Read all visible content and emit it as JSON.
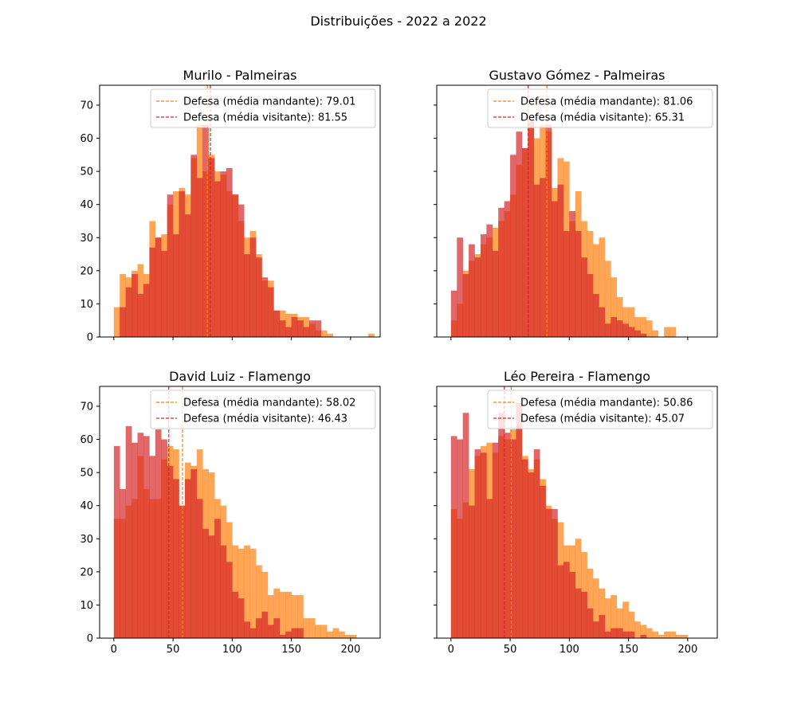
{
  "figure_title": "Distribuições - 2022 a 2022",
  "colors": {
    "home_hist": "#ff7f0e",
    "away_hist": "#d62728",
    "home_line": "#ff7f0e",
    "away_line": "#d62728",
    "overlap": "#e24d32"
  },
  "chart_data": [
    {
      "type": "histogram",
      "title": "Murilo - Palmeiras",
      "xlim": [
        -12,
        225
      ],
      "ylim": [
        0,
        76
      ],
      "xticks": [
        0,
        50,
        100,
        150,
        200
      ],
      "yticks": [
        0,
        10,
        20,
        30,
        40,
        50,
        60,
        70
      ],
      "show_xtick_labels": false,
      "show_ytick_labels": true,
      "legend_position": "upper-right",
      "bin_start": 0,
      "bin_width": 5,
      "series": [
        {
          "name": "Defesa (média mandante): 79.01",
          "role": "home",
          "values": [
            9,
            19,
            18,
            20,
            22,
            19,
            35,
            30,
            31,
            40,
            44,
            45,
            43,
            54,
            64,
            50,
            55,
            50,
            49,
            44,
            43,
            35,
            30,
            32,
            25,
            17,
            17,
            8,
            8,
            7,
            7,
            6,
            6,
            4,
            2,
            2,
            1,
            0,
            0,
            0,
            0,
            0,
            0,
            1
          ]
        },
        {
          "name": "Defesa (média visitante): 81.55",
          "role": "away",
          "values": [
            0,
            9,
            15,
            19,
            13,
            16,
            27,
            30,
            26,
            43,
            31,
            44,
            37,
            55,
            48,
            64,
            54,
            47,
            50,
            51,
            43,
            40,
            25,
            30,
            24,
            18,
            15,
            8,
            5,
            3,
            6,
            5,
            3,
            5,
            5,
            0,
            0,
            0,
            0,
            0,
            0,
            0,
            0,
            0
          ]
        }
      ],
      "vlines": [
        {
          "label": "Defesa (média mandante): 79.01",
          "x": 79.01,
          "role": "home"
        },
        {
          "label": "Defesa (média visitante): 81.55",
          "x": 81.55,
          "role": "away"
        }
      ]
    },
    {
      "type": "histogram",
      "title": "Gustavo Gómez - Palmeiras",
      "xlim": [
        -12,
        225
      ],
      "ylim": [
        0,
        76
      ],
      "xticks": [
        0,
        50,
        100,
        150,
        200
      ],
      "yticks": [
        0,
        10,
        20,
        30,
        40,
        50,
        60,
        70
      ],
      "show_xtick_labels": false,
      "show_ytick_labels": false,
      "legend_position": "upper-right",
      "bin_start": 0,
      "bin_width": 5,
      "series": [
        {
          "name": "Defesa (média mandante): 81.06",
          "role": "home",
          "values": [
            5,
            10,
            20,
            23,
            25,
            28,
            30,
            33,
            35,
            38,
            43,
            52,
            57,
            63,
            60,
            64,
            62,
            45,
            54,
            53,
            35,
            44,
            35,
            32,
            28,
            30,
            23,
            18,
            12,
            9,
            9,
            6,
            6,
            5,
            2,
            0,
            3,
            3,
            0,
            0,
            0,
            0,
            0,
            0
          ]
        },
        {
          "name": "Defesa (média visitante): 65.31",
          "role": "away",
          "values": [
            14,
            30,
            19,
            28,
            24,
            31,
            34,
            26,
            39,
            41,
            55,
            62,
            57,
            65,
            46,
            48,
            64,
            41,
            46,
            32,
            38,
            32,
            24,
            19,
            13,
            9,
            4,
            6,
            5,
            4,
            3,
            2,
            1,
            0,
            0,
            0,
            0,
            0,
            0,
            0,
            0,
            0,
            0,
            0
          ]
        }
      ],
      "vlines": [
        {
          "label": "Defesa (média mandante): 81.06",
          "x": 81.06,
          "role": "home"
        },
        {
          "label": "Defesa (média visitante): 65.31",
          "x": 65.31,
          "role": "away"
        }
      ]
    },
    {
      "type": "histogram",
      "title": "David Luiz - Flamengo",
      "xlim": [
        -12,
        225
      ],
      "ylim": [
        0,
        76
      ],
      "xticks": [
        0,
        50,
        100,
        150,
        200
      ],
      "yticks": [
        0,
        10,
        20,
        30,
        40,
        50,
        60,
        70
      ],
      "show_xtick_labels": true,
      "show_ytick_labels": true,
      "legend_position": "upper-right",
      "bin_start": 0,
      "bin_width": 5,
      "series": [
        {
          "name": "Defesa (média mandante): 58.02",
          "role": "home",
          "values": [
            36,
            36,
            40,
            42,
            55,
            45,
            42,
            42,
            54,
            58,
            57,
            40,
            53,
            52,
            57,
            51,
            50,
            42,
            40,
            35,
            28,
            27,
            28,
            27,
            22,
            20,
            13,
            15,
            14,
            14,
            13,
            13,
            6,
            6,
            4,
            4,
            2,
            3,
            2,
            1,
            1,
            0,
            0,
            0
          ]
        },
        {
          "name": "Defesa (média visitante): 46.43",
          "role": "away",
          "values": [
            58,
            45,
            64,
            59,
            62,
            61,
            55,
            63,
            60,
            52,
            48,
            40,
            48,
            51,
            42,
            33,
            31,
            36,
            28,
            23,
            14,
            12,
            5,
            3,
            6,
            8,
            4,
            6,
            1,
            2,
            3,
            3,
            0,
            0,
            0,
            0,
            0,
            0,
            0,
            0,
            0,
            0,
            0,
            0
          ]
        }
      ],
      "vlines": [
        {
          "label": "Defesa (média mandante): 58.02",
          "x": 58.02,
          "role": "home"
        },
        {
          "label": "Defesa (média visitante): 46.43",
          "x": 46.43,
          "role": "away"
        }
      ]
    },
    {
      "type": "histogram",
      "title": "Léo Pereira - Flamengo",
      "xlim": [
        -12,
        225
      ],
      "ylim": [
        0,
        76
      ],
      "xticks": [
        0,
        50,
        100,
        150,
        200
      ],
      "yticks": [
        0,
        10,
        20,
        30,
        40,
        50,
        60,
        70
      ],
      "show_xtick_labels": true,
      "show_ytick_labels": false,
      "legend_position": "upper-right",
      "bin_start": 0,
      "bin_width": 5,
      "series": [
        {
          "name": "Defesa (média mandante): 50.86",
          "role": "home",
          "values": [
            39,
            36,
            41,
            51,
            55,
            58,
            59,
            56,
            61,
            60,
            63,
            64,
            55,
            51,
            54,
            48,
            40,
            36,
            35,
            28,
            28,
            30,
            26,
            21,
            18,
            15,
            12,
            13,
            9,
            11,
            8,
            5,
            4,
            3,
            2,
            1,
            2,
            2,
            1,
            1,
            0,
            0,
            0,
            0
          ]
        },
        {
          "name": "Defesa (média visitante): 45.07",
          "role": "away",
          "values": [
            61,
            60,
            68,
            40,
            57,
            56,
            42,
            59,
            68,
            62,
            60,
            71,
            54,
            50,
            57,
            46,
            39,
            39,
            22,
            23,
            20,
            15,
            14,
            9,
            5,
            7,
            2,
            3,
            3,
            2,
            2,
            0,
            1,
            0,
            0,
            0,
            0,
            0,
            0,
            0,
            0,
            0,
            0,
            0
          ]
        }
      ],
      "vlines": [
        {
          "label": "Defesa (média mandante): 50.86",
          "x": 50.86,
          "role": "home"
        },
        {
          "label": "Defesa (média visitante): 45.07",
          "x": 45.07,
          "role": "away"
        }
      ]
    }
  ]
}
